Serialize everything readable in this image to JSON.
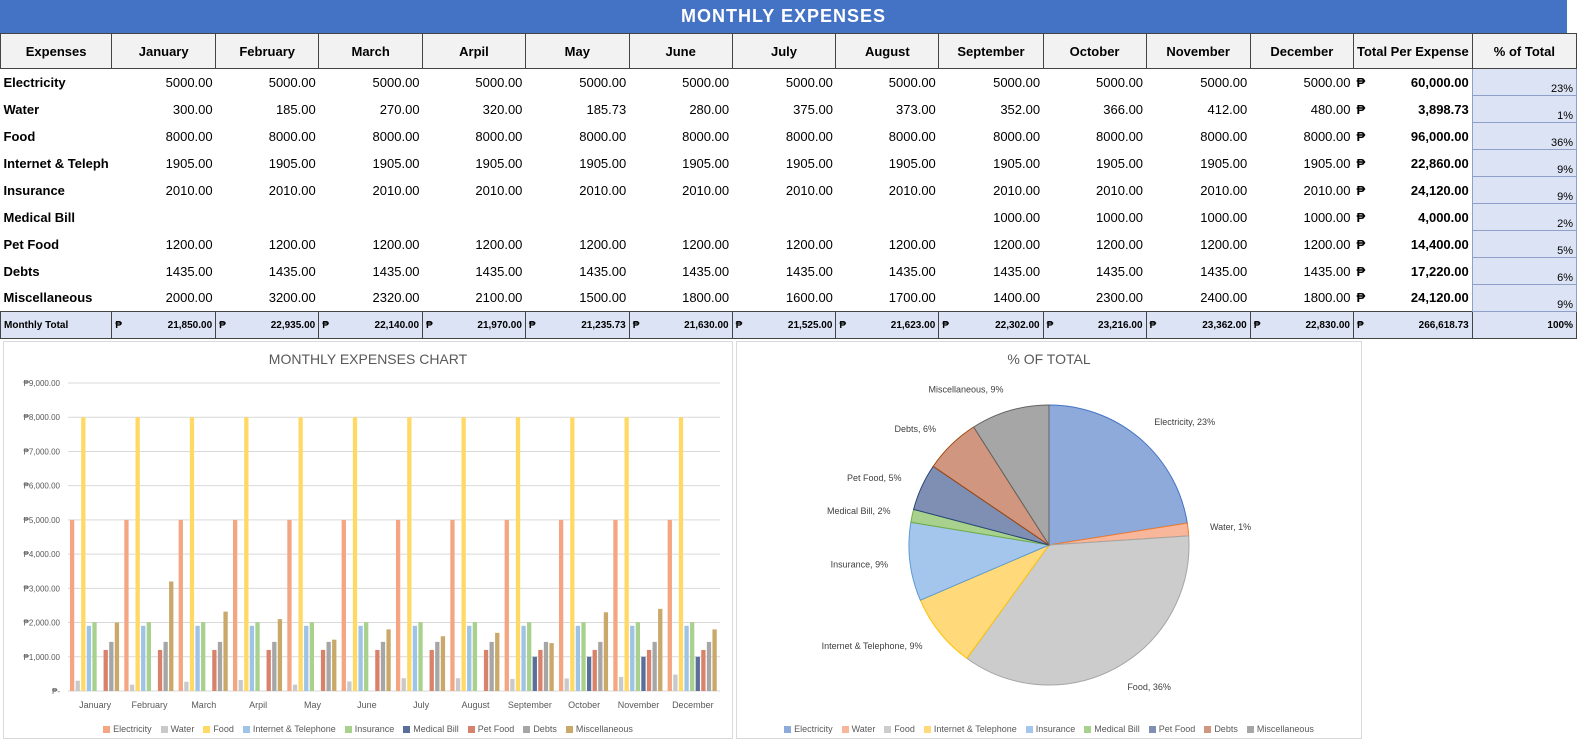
{
  "title": "MONTHLY  EXPENSES",
  "table": {
    "headers": [
      "Expenses",
      "January",
      "February",
      "March",
      "Arpil",
      "May",
      "June",
      "July",
      "August",
      "September",
      "October",
      "November",
      "December",
      "Total Per Expense",
      "% of Total"
    ],
    "currency": "₱",
    "rows": [
      {
        "name": "Electricity",
        "values": [
          "5000.00",
          "5000.00",
          "5000.00",
          "5000.00",
          "5000.00",
          "5000.00",
          "5000.00",
          "5000.00",
          "5000.00",
          "5000.00",
          "5000.00",
          "5000.00"
        ],
        "total": "60,000.00",
        "pct": "23%"
      },
      {
        "name": "Water",
        "values": [
          "300.00",
          "185.00",
          "270.00",
          "320.00",
          "185.73",
          "280.00",
          "375.00",
          "373.00",
          "352.00",
          "366.00",
          "412.00",
          "480.00"
        ],
        "total": "3,898.73",
        "pct": "1%"
      },
      {
        "name": "Food",
        "values": [
          "8000.00",
          "8000.00",
          "8000.00",
          "8000.00",
          "8000.00",
          "8000.00",
          "8000.00",
          "8000.00",
          "8000.00",
          "8000.00",
          "8000.00",
          "8000.00"
        ],
        "total": "96,000.00",
        "pct": "36%"
      },
      {
        "name": "Internet & Teleph",
        "values": [
          "1905.00",
          "1905.00",
          "1905.00",
          "1905.00",
          "1905.00",
          "1905.00",
          "1905.00",
          "1905.00",
          "1905.00",
          "1905.00",
          "1905.00",
          "1905.00"
        ],
        "total": "22,860.00",
        "pct": "9%"
      },
      {
        "name": "Insurance",
        "values": [
          "2010.00",
          "2010.00",
          "2010.00",
          "2010.00",
          "2010.00",
          "2010.00",
          "2010.00",
          "2010.00",
          "2010.00",
          "2010.00",
          "2010.00",
          "2010.00"
        ],
        "total": "24,120.00",
        "pct": "9%"
      },
      {
        "name": "Medical Bill",
        "values": [
          "",
          "",
          "",
          "",
          "",
          "",
          "",
          "",
          "1000.00",
          "1000.00",
          "1000.00",
          "1000.00"
        ],
        "total": "4,000.00",
        "pct": "2%"
      },
      {
        "name": "Pet Food",
        "values": [
          "1200.00",
          "1200.00",
          "1200.00",
          "1200.00",
          "1200.00",
          "1200.00",
          "1200.00",
          "1200.00",
          "1200.00",
          "1200.00",
          "1200.00",
          "1200.00"
        ],
        "total": "14,400.00",
        "pct": "5%"
      },
      {
        "name": "Debts",
        "values": [
          "1435.00",
          "1435.00",
          "1435.00",
          "1435.00",
          "1435.00",
          "1435.00",
          "1435.00",
          "1435.00",
          "1435.00",
          "1435.00",
          "1435.00",
          "1435.00"
        ],
        "total": "17,220.00",
        "pct": "6%"
      },
      {
        "name": "Miscellaneous",
        "values": [
          "2000.00",
          "3200.00",
          "2320.00",
          "2100.00",
          "1500.00",
          "1800.00",
          "1600.00",
          "1700.00",
          "1400.00",
          "2300.00",
          "2400.00",
          "1800.00"
        ],
        "total": "24,120.00",
        "pct": "9%"
      }
    ],
    "footer": {
      "name": "Monthly Total",
      "values": [
        "21,850.00",
        "22,935.00",
        "22,140.00",
        "21,970.00",
        "21,235.73",
        "21,630.00",
        "21,525.00",
        "21,623.00",
        "22,302.00",
        "23,216.00",
        "23,362.00",
        "22,830.00"
      ],
      "total": "266,618.73",
      "pct": "100%"
    }
  },
  "chart_data": [
    {
      "type": "bar",
      "title": "MONTHLY EXPENSES CHART",
      "categories": [
        "January",
        "February",
        "March",
        "Arpil",
        "May",
        "June",
        "July",
        "August",
        "September",
        "October",
        "November",
        "December"
      ],
      "y_ticks": [
        "₱-",
        "₱1,000.00",
        "₱2,000.00",
        "₱3,000.00",
        "₱4,000.00",
        "₱5,000.00",
        "₱6,000.00",
        "₱7,000.00",
        "₱8,000.00",
        "₱9,000.00"
      ],
      "ylim": [
        0,
        9000
      ],
      "grid": true,
      "legend_position": "bottom",
      "series": [
        {
          "name": "Electricity",
          "color": "#f4a582",
          "values": [
            5000,
            5000,
            5000,
            5000,
            5000,
            5000,
            5000,
            5000,
            5000,
            5000,
            5000,
            5000
          ]
        },
        {
          "name": "Water",
          "color": "#c9c9c9",
          "values": [
            300,
            185,
            270,
            320,
            185.73,
            280,
            375,
            373,
            352,
            366,
            412,
            480
          ]
        },
        {
          "name": "Food",
          "color": "#ffd966",
          "values": [
            8000,
            8000,
            8000,
            8000,
            8000,
            8000,
            8000,
            8000,
            8000,
            8000,
            8000,
            8000
          ]
        },
        {
          "name": "Internet & Telephone",
          "color": "#9dc3e6",
          "values": [
            1905,
            1905,
            1905,
            1905,
            1905,
            1905,
            1905,
            1905,
            1905,
            1905,
            1905,
            1905
          ]
        },
        {
          "name": "Insurance",
          "color": "#a9d18e",
          "values": [
            2010,
            2010,
            2010,
            2010,
            2010,
            2010,
            2010,
            2010,
            2010,
            2010,
            2010,
            2010
          ]
        },
        {
          "name": "Medical Bill",
          "color": "#5a6e9a",
          "values": [
            0,
            0,
            0,
            0,
            0,
            0,
            0,
            0,
            1000,
            1000,
            1000,
            1000
          ]
        },
        {
          "name": "Pet Food",
          "color": "#d9826b",
          "values": [
            1200,
            1200,
            1200,
            1200,
            1200,
            1200,
            1200,
            1200,
            1200,
            1200,
            1200,
            1200
          ]
        },
        {
          "name": "Debts",
          "color": "#a6a6a6",
          "values": [
            1435,
            1435,
            1435,
            1435,
            1435,
            1435,
            1435,
            1435,
            1435,
            1435,
            1435,
            1435
          ]
        },
        {
          "name": "Miscellaneous",
          "color": "#c9a86a",
          "values": [
            2000,
            3200,
            2320,
            2100,
            1500,
            1800,
            1600,
            1700,
            1400,
            2300,
            2400,
            1800
          ]
        }
      ]
    },
    {
      "type": "pie",
      "title": "% OF TOTAL",
      "legend_position": "bottom",
      "slices": [
        {
          "name": "Electricity",
          "value": 60000,
          "label": "Electricity, 23%",
          "color": "#8eaadb",
          "stroke": "#4472c4"
        },
        {
          "name": "Water",
          "value": 3898.73,
          "label": "Water, 1%",
          "color": "#f8b79a",
          "stroke": "#ed7d31"
        },
        {
          "name": "Food",
          "value": 96000,
          "label": "Food, 36%",
          "color": "#cccccc",
          "stroke": "#a5a5a5"
        },
        {
          "name": "Internet & Telephone",
          "value": 22860,
          "label": "Internet & Telephone, 9%",
          "color": "#ffd97a",
          "stroke": "#ffc000"
        },
        {
          "name": "Insurance",
          "value": 24120,
          "label": "Insurance, 9%",
          "color": "#a4c6ec",
          "stroke": "#5b9bd5"
        },
        {
          "name": "Medical Bill",
          "value": 4000,
          "label": "Medical Bill, 2%",
          "color": "#a9d18e",
          "stroke": "#70ad47"
        },
        {
          "name": "Pet Food",
          "value": 14400,
          "label": "Pet Food, 5%",
          "color": "#7f8fb4",
          "stroke": "#264478"
        },
        {
          "name": "Debts",
          "value": 17220,
          "label": "Debts, 6%",
          "color": "#d09680",
          "stroke": "#9e480e"
        },
        {
          "name": "Miscellaneous",
          "value": 24120,
          "label": "Miscellaneous, 9%",
          "color": "#a6a6a6",
          "stroke": "#636363"
        }
      ]
    }
  ]
}
